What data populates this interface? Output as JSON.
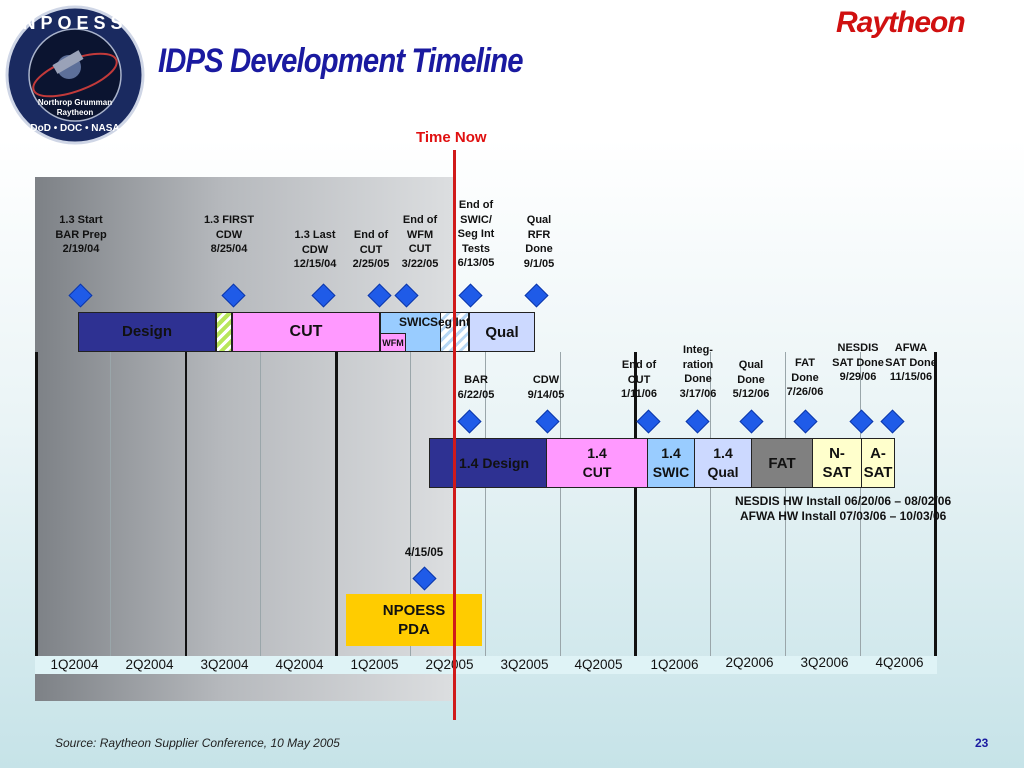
{
  "header": {
    "title": "IDPS Development Timeline",
    "brand": "Raytheon",
    "logo_top_text": "NPOESS",
    "logo_line1": "Northrop Grumman",
    "logo_line2": "Raytheon",
    "logo_bottom_text": "DoD • DOC • NASA"
  },
  "time_now": "Time Now",
  "quarters": [
    "1Q2004",
    "2Q2004",
    "3Q2004",
    "4Q2004",
    "1Q2005",
    "2Q2005",
    "3Q2005",
    "4Q2005",
    "1Q2006",
    "2Q2006",
    "3Q2006",
    "4Q2006"
  ],
  "milestones_top": [
    "1.3 Start BAR Prep 2/19/04",
    "1.3 FIRST CDW 8/25/04",
    "1.3 Last CDW 12/15/04",
    "End of CUT 2/25/05",
    "End of WFM CUT 3/22/05",
    "End of SWIC/ Seg Int Tests 6/13/05",
    "Qual RFR Done 9/1/05"
  ],
  "bar_top": {
    "design": "Design",
    "cut": "CUT",
    "wfm": "WFM",
    "swic": "SWIC",
    "segint": "Seg Int",
    "qual": "Qual"
  },
  "milestones_bottom": [
    "BAR 6/22/05",
    "CDW 9/14/05",
    "End of CUT 1/11/06",
    "Integ- ration Done 3/17/06",
    "Qual Done 5/12/06",
    "FAT Done 7/26/06",
    "NESDIS SAT Done 9/29/06",
    "AFWA SAT Done 11/15/06"
  ],
  "bar_bottom": {
    "design": "1.4 Design",
    "cut": "1.4 CUT",
    "swic": "1.4 SWIC",
    "qual": "1.4 Qual",
    "fat": "FAT",
    "nsat": "N- SAT",
    "asat": "A- SAT"
  },
  "notes": {
    "nesdis": "NESDIS HW Install 06/20/06 – 08/02/06",
    "afwa": "AFWA HW Install 07/03/06 – 10/03/06"
  },
  "pda": {
    "date": "4/15/05",
    "label": "NPOESS PDA"
  },
  "footer": {
    "source": "Source:  Raytheon Supplier Conference, 10 May 2005",
    "page": "23"
  },
  "colors": {
    "design": "#2e3192",
    "cut": "#ff99ff",
    "swic": "#99ccff",
    "qual": "#ccd9ff",
    "fat": "#808080",
    "nsat": "#ffffcc",
    "pda": "#ffcc00",
    "diamond": "#1f5be8",
    "timenow": "#d01a1a",
    "title": "#1a1aa0"
  }
}
